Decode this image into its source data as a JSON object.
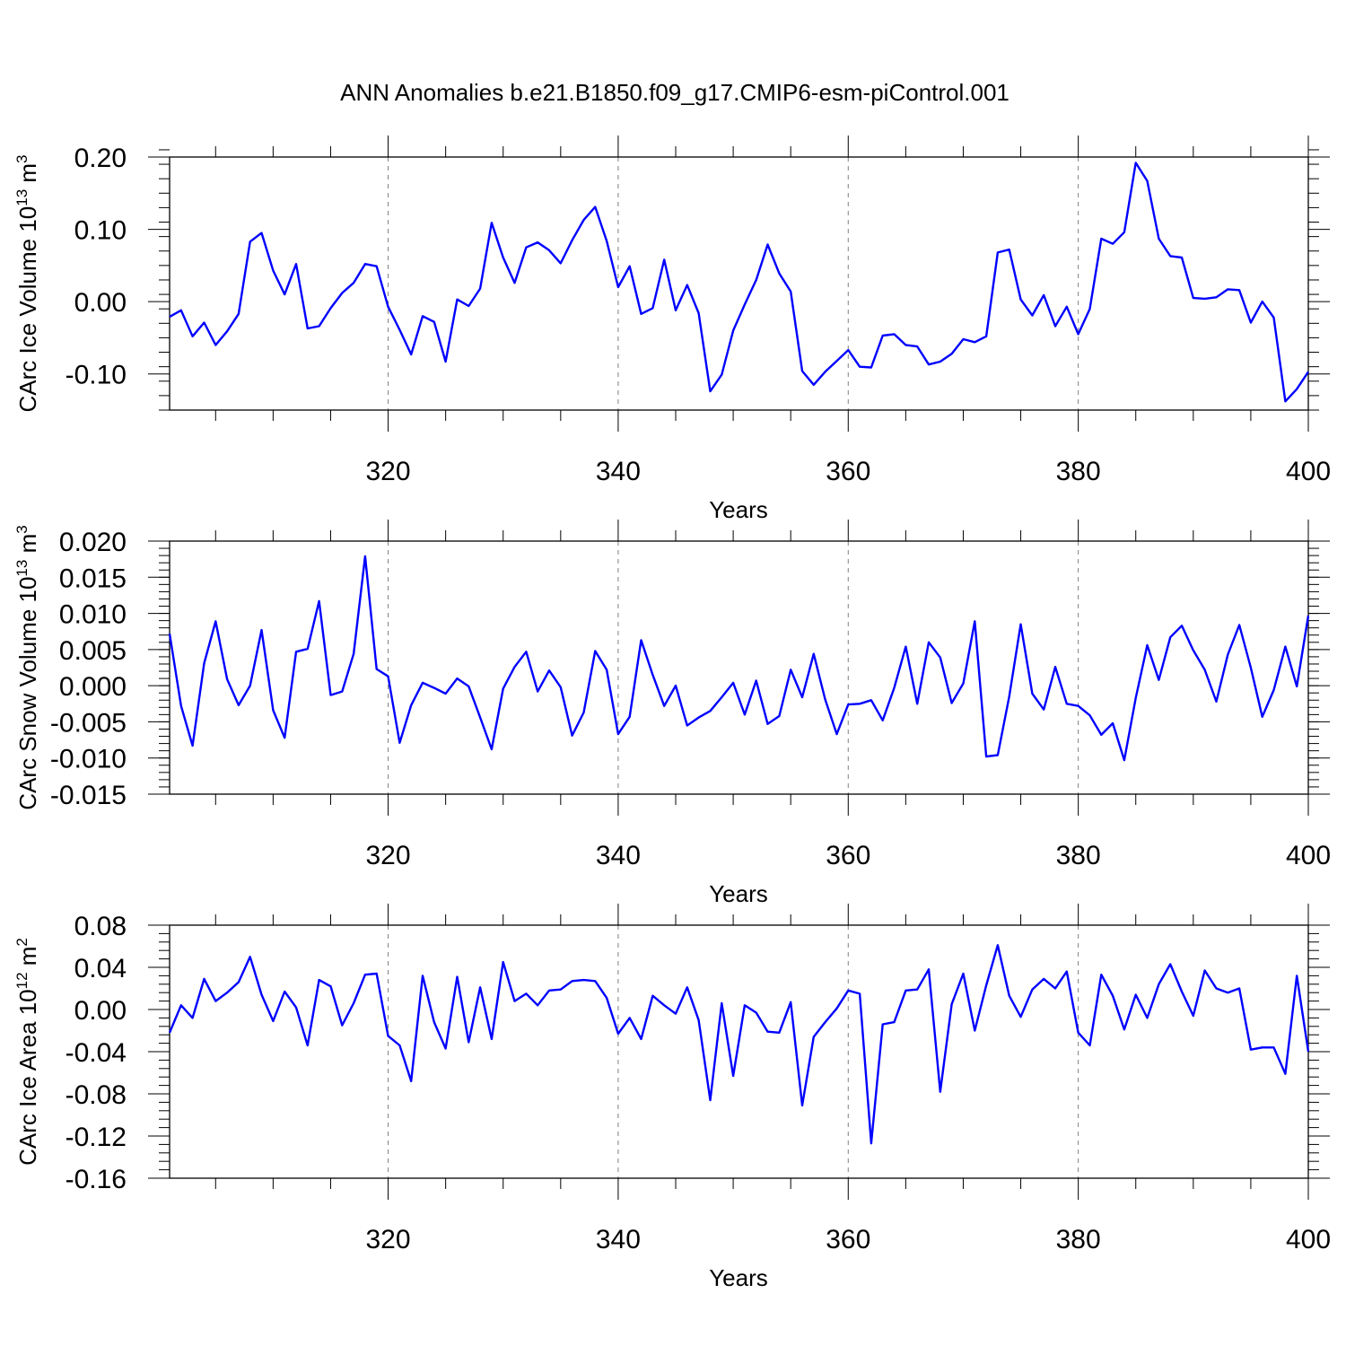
{
  "title": "ANN Anomalies b.e21.B1850.f09_g17.CMIP6-esm-piControl.001",
  "line_color": "#0000ff",
  "chart_data": [
    {
      "type": "line",
      "xlabel": "Years",
      "ylabel": "CArc Ice Volume 10",
      "ylabel_exp": "13",
      "ylabel_unit": "m",
      "ylabel_unit_exp": "3",
      "xlim": [
        301,
        400
      ],
      "ylim": [
        -0.15,
        0.2
      ],
      "x_ticks": [
        320,
        340,
        360,
        380,
        400
      ],
      "y_ticks": [
        -0.1,
        0.0,
        0.1,
        0.2
      ],
      "y_tick_labels": [
        "-0.10",
        "0.00",
        "0.10",
        "0.20"
      ],
      "y_minor_step": 0.02,
      "grid_x": true,
      "x": [
        301,
        302,
        303,
        304,
        305,
        306,
        307,
        308,
        309,
        310,
        311,
        312,
        313,
        314,
        315,
        316,
        317,
        318,
        319,
        320,
        321,
        322,
        323,
        324,
        325,
        326,
        327,
        328,
        329,
        330,
        331,
        332,
        333,
        334,
        335,
        336,
        337,
        338,
        339,
        340,
        341,
        342,
        343,
        344,
        345,
        346,
        347,
        348,
        349,
        350,
        351,
        352,
        353,
        354,
        355,
        356,
        357,
        358,
        359,
        360,
        361,
        362,
        363,
        364,
        365,
        366,
        367,
        368,
        369,
        370,
        371,
        372,
        373,
        374,
        375,
        376,
        377,
        378,
        379,
        380,
        381,
        382,
        383,
        384,
        385,
        386,
        387,
        388,
        389,
        390,
        391,
        392,
        393,
        394,
        395,
        396,
        397,
        398,
        399,
        400
      ],
      "values": [
        -0.021,
        -0.012,
        -0.048,
        -0.029,
        -0.06,
        -0.041,
        -0.017,
        0.083,
        0.095,
        0.043,
        0.01,
        0.052,
        -0.037,
        -0.034,
        -0.009,
        0.012,
        0.026,
        0.052,
        0.049,
        -0.007,
        -0.039,
        -0.073,
        -0.02,
        -0.028,
        -0.083,
        0.003,
        -0.006,
        0.018,
        0.109,
        0.061,
        0.026,
        0.075,
        0.082,
        0.071,
        0.053,
        0.085,
        0.113,
        0.131,
        0.084,
        0.02,
        0.049,
        -0.017,
        -0.009,
        0.058,
        -0.012,
        0.023,
        -0.016,
        -0.124,
        -0.101,
        -0.04,
        -0.004,
        0.03,
        0.079,
        0.039,
        0.014,
        -0.096,
        -0.115,
        -0.097,
        -0.082,
        -0.067,
        -0.09,
        -0.091,
        -0.047,
        -0.045,
        -0.06,
        -0.062,
        -0.087,
        -0.083,
        -0.072,
        -0.052,
        -0.056,
        -0.048,
        0.068,
        0.072,
        0.003,
        -0.019,
        0.009,
        -0.034,
        -0.007,
        -0.045,
        -0.01,
        0.087,
        0.08,
        0.096,
        0.192,
        0.167,
        0.087,
        0.063,
        0.061,
        0.005,
        0.004,
        0.006,
        0.017,
        0.016,
        -0.029,
        0.0,
        -0.022,
        -0.138,
        -0.121,
        -0.097
      ]
    },
    {
      "type": "line",
      "xlabel": "Years",
      "ylabel": "CArc Snow Volume 10",
      "ylabel_exp": "13",
      "ylabel_unit": "m",
      "ylabel_unit_exp": "3",
      "xlim": [
        301,
        400
      ],
      "ylim": [
        -0.015,
        0.02
      ],
      "x_ticks": [
        320,
        340,
        360,
        380,
        400
      ],
      "y_ticks": [
        -0.015,
        -0.01,
        -0.005,
        0.0,
        0.005,
        0.01,
        0.015,
        0.02
      ],
      "y_tick_labels": [
        "-0.015",
        "-0.010",
        "-0.005",
        "0.000",
        "0.005",
        "0.010",
        "0.015",
        "0.020"
      ],
      "y_minor_step": 0.001,
      "grid_x": true,
      "x": [
        301,
        302,
        303,
        304,
        305,
        306,
        307,
        308,
        309,
        310,
        311,
        312,
        313,
        314,
        315,
        316,
        317,
        318,
        319,
        320,
        321,
        322,
        323,
        324,
        325,
        326,
        327,
        328,
        329,
        330,
        331,
        332,
        333,
        334,
        335,
        336,
        337,
        338,
        339,
        340,
        341,
        342,
        343,
        344,
        345,
        346,
        347,
        348,
        349,
        350,
        351,
        352,
        353,
        354,
        355,
        356,
        357,
        358,
        359,
        360,
        361,
        362,
        363,
        364,
        365,
        366,
        367,
        368,
        369,
        370,
        371,
        372,
        373,
        374,
        375,
        376,
        377,
        378,
        379,
        380,
        381,
        382,
        383,
        384,
        385,
        386,
        387,
        388,
        389,
        390,
        391,
        392,
        393,
        394,
        395,
        396,
        397,
        398,
        399,
        400
      ],
      "values": [
        0.0072,
        -0.0028,
        -0.0083,
        0.0031,
        0.0089,
        0.0009,
        -0.0027,
        0.0,
        0.0077,
        -0.0034,
        -0.0072,
        0.0047,
        0.0051,
        0.0117,
        -0.0013,
        -0.0008,
        0.0044,
        0.0179,
        0.0023,
        0.0013,
        -0.0079,
        -0.0027,
        0.0004,
        -0.0003,
        -0.0011,
        0.001,
        -0.0001,
        -0.0044,
        -0.0088,
        -0.0004,
        0.0026,
        0.0047,
        -0.0008,
        0.0021,
        -0.0002,
        -0.0069,
        -0.0037,
        0.0048,
        0.0022,
        -0.0067,
        -0.0043,
        0.0063,
        0.0015,
        -0.0028,
        0.0,
        -0.0055,
        -0.0044,
        -0.0035,
        -0.0016,
        0.0004,
        -0.004,
        0.0007,
        -0.0053,
        -0.0042,
        0.0022,
        -0.0016,
        0.0044,
        -0.0019,
        -0.0067,
        -0.0026,
        -0.0025,
        -0.002,
        -0.0048,
        -0.0003,
        0.0054,
        -0.0025,
        0.006,
        0.0039,
        -0.0024,
        0.0003,
        0.0089,
        -0.0098,
        -0.0096,
        -0.0015,
        0.0085,
        -0.0011,
        -0.0033,
        0.0026,
        -0.0025,
        -0.0028,
        -0.0041,
        -0.0068,
        -0.0052,
        -0.0103,
        -0.0017,
        0.0056,
        0.0008,
        0.0067,
        0.0083,
        0.0049,
        0.0022,
        -0.0022,
        0.0043,
        0.0084,
        0.0025,
        -0.0043,
        -0.0006,
        0.0054,
        -0.0001,
        0.0097
      ]
    },
    {
      "type": "line",
      "xlabel": "Years",
      "ylabel": "CArc Ice Area 10",
      "ylabel_exp": "12",
      "ylabel_unit": "m",
      "ylabel_unit_exp": "2",
      "xlim": [
        301,
        400
      ],
      "ylim": [
        -0.16,
        0.08
      ],
      "x_ticks": [
        320,
        340,
        360,
        380,
        400
      ],
      "y_ticks": [
        -0.16,
        -0.12,
        -0.08,
        -0.04,
        0.0,
        0.04,
        0.08
      ],
      "y_tick_labels": [
        "-0.16",
        "-0.12",
        "-0.08",
        "-0.04",
        "0.00",
        "0.04",
        "0.08"
      ],
      "y_minor_step": 0.008,
      "grid_x": true,
      "x": [
        301,
        302,
        303,
        304,
        305,
        306,
        307,
        308,
        309,
        310,
        311,
        312,
        313,
        314,
        315,
        316,
        317,
        318,
        319,
        320,
        321,
        322,
        323,
        324,
        325,
        326,
        327,
        328,
        329,
        330,
        331,
        332,
        333,
        334,
        335,
        336,
        337,
        338,
        339,
        340,
        341,
        342,
        343,
        344,
        345,
        346,
        347,
        348,
        349,
        350,
        351,
        352,
        353,
        354,
        355,
        356,
        357,
        358,
        359,
        360,
        361,
        362,
        363,
        364,
        365,
        366,
        367,
        368,
        369,
        370,
        371,
        372,
        373,
        374,
        375,
        376,
        377,
        378,
        379,
        380,
        381,
        382,
        383,
        384,
        385,
        386,
        387,
        388,
        389,
        390,
        391,
        392,
        393,
        394,
        395,
        396,
        397,
        398,
        399,
        400
      ],
      "values": [
        -0.022,
        0.004,
        -0.008,
        0.029,
        0.008,
        0.016,
        0.026,
        0.05,
        0.014,
        -0.011,
        0.017,
        0.002,
        -0.034,
        0.028,
        0.022,
        -0.015,
        0.006,
        0.033,
        0.034,
        -0.025,
        -0.034,
        -0.068,
        0.032,
        -0.012,
        -0.037,
        0.031,
        -0.031,
        0.021,
        -0.028,
        0.045,
        0.008,
        0.015,
        0.004,
        0.018,
        0.019,
        0.027,
        0.028,
        0.027,
        0.011,
        -0.023,
        -0.008,
        -0.028,
        0.013,
        0.004,
        -0.004,
        0.021,
        -0.01,
        -0.086,
        0.006,
        -0.063,
        0.004,
        -0.003,
        -0.021,
        -0.022,
        0.007,
        -0.091,
        -0.026,
        -0.012,
        0.001,
        0.018,
        0.015,
        -0.127,
        -0.014,
        -0.012,
        0.018,
        0.019,
        0.038,
        -0.078,
        0.005,
        0.034,
        -0.02,
        0.023,
        0.061,
        0.013,
        -0.007,
        0.019,
        0.029,
        0.02,
        0.036,
        -0.022,
        -0.034,
        0.033,
        0.013,
        -0.019,
        0.014,
        -0.008,
        0.024,
        0.043,
        0.017,
        -0.006,
        0.037,
        0.02,
        0.016,
        0.02,
        -0.038,
        -0.036,
        -0.036,
        -0.061,
        0.032,
        -0.04
      ]
    }
  ]
}
